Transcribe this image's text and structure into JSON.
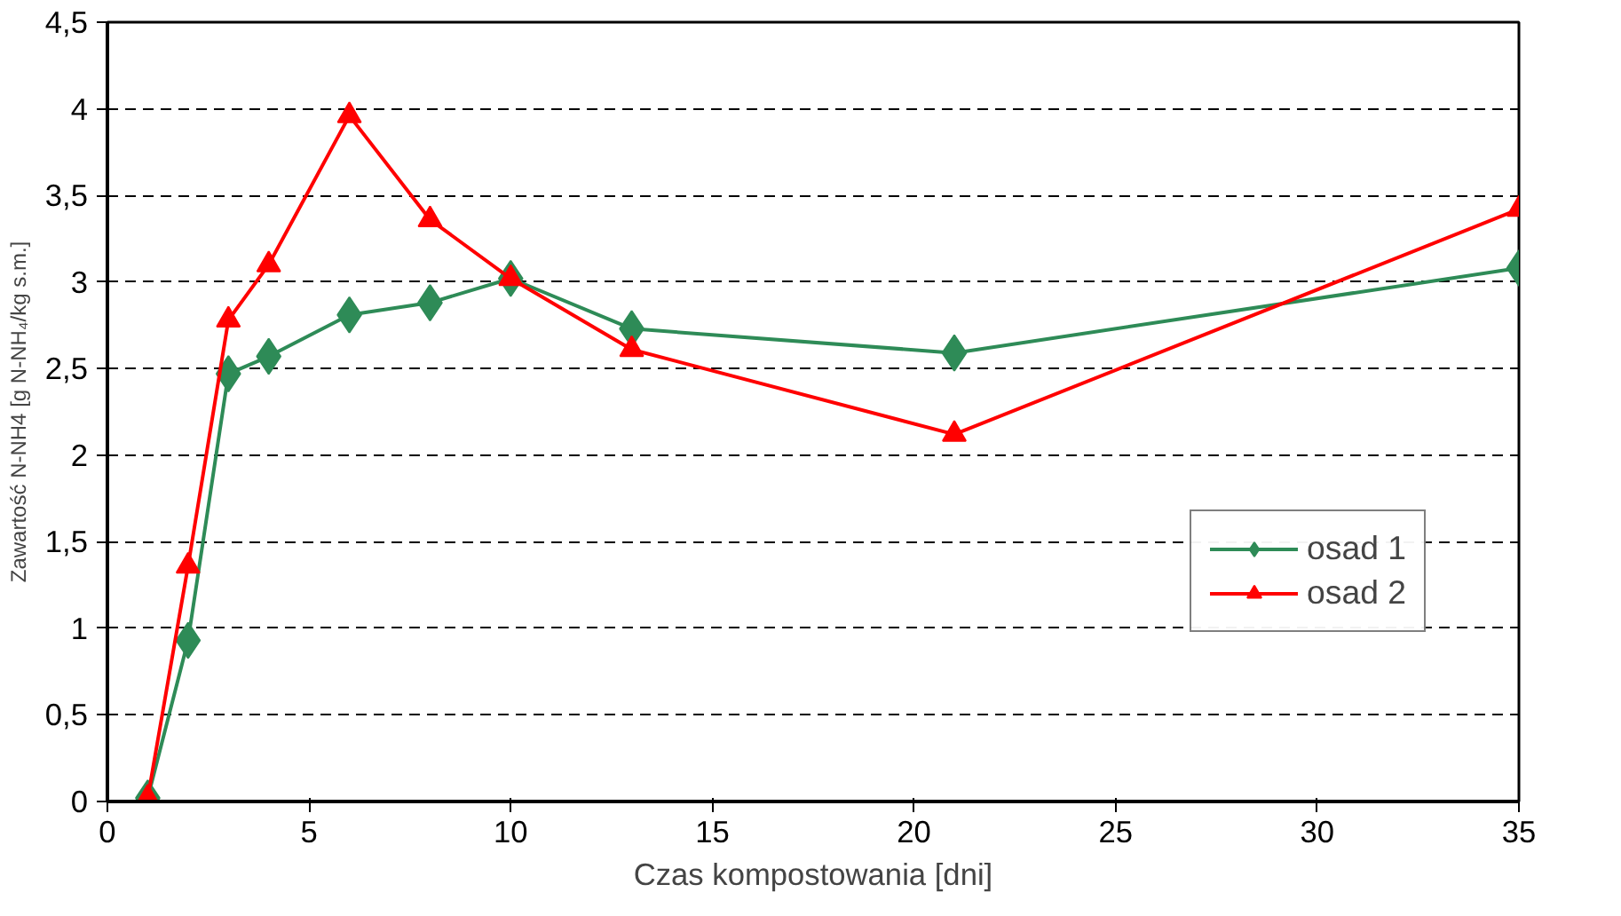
{
  "chart_data": {
    "type": "line",
    "xlabel": "Czas kompostowania [dni]",
    "ylabel": "Zawartość N-NH4 [g N-NH₄/kg s.m.]",
    "x": [
      1,
      2,
      3,
      4,
      6,
      8,
      10,
      13,
      21,
      35
    ],
    "series": [
      {
        "name": "osad 1",
        "color": "#2e8b57",
        "marker": "diamond",
        "values": [
          0.02,
          0.93,
          2.47,
          2.57,
          2.81,
          2.88,
          3.02,
          2.73,
          2.59,
          3.08
        ]
      },
      {
        "name": "osad 2",
        "color": "#ff0000",
        "marker": "triangle",
        "values": [
          0.02,
          1.36,
          2.78,
          3.1,
          3.96,
          3.36,
          3.02,
          2.61,
          2.12,
          3.42
        ]
      }
    ],
    "xlim": [
      0,
      35
    ],
    "ylim": [
      0,
      4.5
    ],
    "xticks": [
      0,
      5,
      10,
      15,
      20,
      25,
      30,
      35
    ],
    "yticks": [
      0,
      {
        "value": 0.5,
        "label": "0,5"
      },
      1,
      {
        "value": 1.5,
        "label": "1,5"
      },
      2,
      {
        "value": 2.5,
        "label": "2,5"
      },
      3,
      {
        "value": 3.5,
        "label": "3,5"
      },
      4,
      {
        "value": 4.5,
        "label": "4,5"
      }
    ],
    "grid": "y",
    "legend": "right",
    "line_style": "solid"
  }
}
